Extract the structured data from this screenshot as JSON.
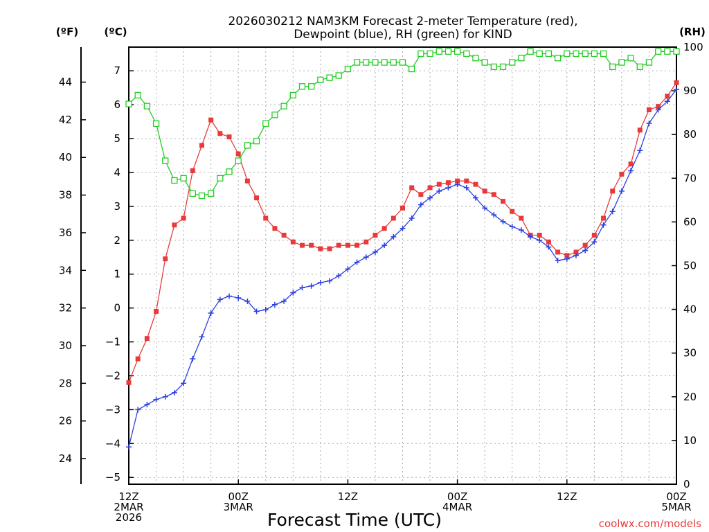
{
  "chart_data": {
    "type": "line",
    "title_line1": "2026030212 NAM3KM Forecast 2-meter Temperature (red),",
    "title_line2": "Dewpoint (blue), RH (green) for KIND",
    "xlabel": "Forecast Time (UTC)",
    "watermark": "coolwx.com/models",
    "units": {
      "fahrenheit": "(ºF)",
      "celsius": "(ºC)",
      "rh": "(RH)"
    },
    "x_range_hours": [
      0,
      60
    ],
    "x_ticks": [
      {
        "hour": 0,
        "lines": [
          "12Z",
          "2MAR",
          "2026"
        ]
      },
      {
        "hour": 12,
        "lines": [
          "00Z",
          "3MAR"
        ]
      },
      {
        "hour": 24,
        "lines": [
          "12Z"
        ]
      },
      {
        "hour": 36,
        "lines": [
          "00Z",
          "4MAR"
        ]
      },
      {
        "hour": 48,
        "lines": [
          "12Z"
        ]
      },
      {
        "hour": 60,
        "lines": [
          "00Z",
          "5MAR"
        ]
      }
    ],
    "celsius_axis": {
      "ylim": [
        -5.2,
        7.7
      ],
      "ticks": [
        "7",
        "6",
        "5",
        "4",
        "3",
        "2",
        "1",
        "0",
        "-1",
        "-2",
        "-3",
        "-4",
        "-5"
      ]
    },
    "fahrenheit_axis": {
      "ticks": [
        "44",
        "42",
        "40",
        "38",
        "36",
        "34",
        "32",
        "30",
        "28",
        "26",
        "24"
      ]
    },
    "rh_axis": {
      "ylim": [
        0,
        100
      ],
      "ticks": [
        "100",
        "90",
        "80",
        "70",
        "60",
        "50",
        "40",
        "30",
        "20",
        "10",
        "0"
      ]
    },
    "series": [
      {
        "name": "2-meter Temperature",
        "color": "#e83a3a",
        "marker": "filled-square",
        "axis": "celsius",
        "x": [
          0,
          1,
          2,
          3,
          4,
          5,
          6,
          7,
          8,
          9,
          10,
          11,
          12,
          13,
          14,
          15,
          16,
          17,
          18,
          19,
          20,
          21,
          22,
          23,
          24,
          25,
          26,
          27,
          28,
          29,
          30,
          31,
          32,
          33,
          34,
          35,
          36,
          37,
          38,
          39,
          40,
          41,
          42,
          43,
          44,
          45,
          46,
          47,
          48,
          49,
          50,
          51,
          52,
          53,
          54,
          55,
          56,
          57,
          58,
          59,
          60
        ],
        "values": [
          -2.2,
          -1.5,
          -0.9,
          -0.1,
          1.45,
          2.45,
          2.65,
          4.05,
          4.8,
          5.55,
          5.15,
          5.05,
          4.55,
          3.75,
          3.25,
          2.65,
          2.35,
          2.15,
          1.95,
          1.85,
          1.85,
          1.75,
          1.75,
          1.85,
          1.85,
          1.85,
          1.95,
          2.15,
          2.35,
          2.65,
          2.95,
          3.55,
          3.35,
          3.55,
          3.65,
          3.7,
          3.75,
          3.75,
          3.65,
          3.45,
          3.35,
          3.15,
          2.85,
          2.65,
          2.15,
          2.15,
          1.95,
          1.65,
          1.55,
          1.65,
          1.85,
          2.15,
          2.65,
          3.45,
          3.95,
          4.25,
          5.25,
          5.85,
          5.95,
          6.25,
          6.65
        ]
      },
      {
        "name": "Dewpoint",
        "color": "#2a3fe0",
        "marker": "plus",
        "axis": "celsius",
        "x": [
          0,
          1,
          2,
          3,
          4,
          5,
          6,
          7,
          8,
          9,
          10,
          11,
          12,
          13,
          14,
          15,
          16,
          17,
          18,
          19,
          20,
          21,
          22,
          23,
          24,
          25,
          26,
          27,
          28,
          29,
          30,
          31,
          32,
          33,
          34,
          35,
          36,
          37,
          38,
          39,
          40,
          41,
          42,
          43,
          44,
          45,
          46,
          47,
          48,
          49,
          50,
          51,
          52,
          53,
          54,
          55,
          56,
          57,
          58,
          59,
          60
        ],
        "values": [
          -4.1,
          -3.0,
          -2.85,
          -2.7,
          -2.62,
          -2.5,
          -2.22,
          -1.5,
          -0.85,
          -0.15,
          0.25,
          0.35,
          0.3,
          0.2,
          -0.1,
          -0.05,
          0.1,
          0.2,
          0.45,
          0.6,
          0.65,
          0.75,
          0.8,
          0.95,
          1.15,
          1.35,
          1.5,
          1.65,
          1.85,
          2.1,
          2.35,
          2.65,
          3.05,
          3.25,
          3.45,
          3.55,
          3.65,
          3.55,
          3.25,
          2.95,
          2.75,
          2.55,
          2.4,
          2.3,
          2.1,
          2.0,
          1.8,
          1.4,
          1.45,
          1.55,
          1.7,
          1.95,
          2.45,
          2.85,
          3.45,
          4.05,
          4.65,
          5.45,
          5.85,
          6.1,
          6.45
        ]
      },
      {
        "name": "RH",
        "color": "#22cc22",
        "marker": "open-square",
        "axis": "rh",
        "x": [
          0,
          1,
          2,
          3,
          4,
          5,
          6,
          7,
          8,
          9,
          10,
          11,
          12,
          13,
          14,
          15,
          16,
          17,
          18,
          19,
          20,
          21,
          22,
          23,
          24,
          25,
          26,
          27,
          28,
          29,
          30,
          31,
          32,
          33,
          34,
          35,
          36,
          37,
          38,
          39,
          40,
          41,
          42,
          43,
          44,
          45,
          46,
          47,
          48,
          49,
          50,
          51,
          52,
          53,
          54,
          55,
          56,
          57,
          58,
          59,
          60
        ],
        "values": [
          87,
          89,
          86.5,
          82.5,
          74,
          69.5,
          70,
          66.5,
          66,
          66.5,
          70,
          71.5,
          74,
          77.5,
          78.5,
          82.5,
          84.5,
          86.5,
          89,
          91,
          91,
          92.5,
          93,
          93.5,
          95,
          96.5,
          96.5,
          96.5,
          96.5,
          96.5,
          96.5,
          95,
          98.5,
          98.5,
          99,
          99,
          99,
          98.5,
          97.5,
          96.5,
          95.5,
          95.5,
          96.5,
          97.5,
          99,
          98.5,
          98.5,
          97.5,
          98.5,
          98.5,
          98.5,
          98.5,
          98.5,
          95.5,
          96.5,
          97.5,
          95.5,
          96.5,
          99,
          99,
          99
        ]
      }
    ]
  }
}
